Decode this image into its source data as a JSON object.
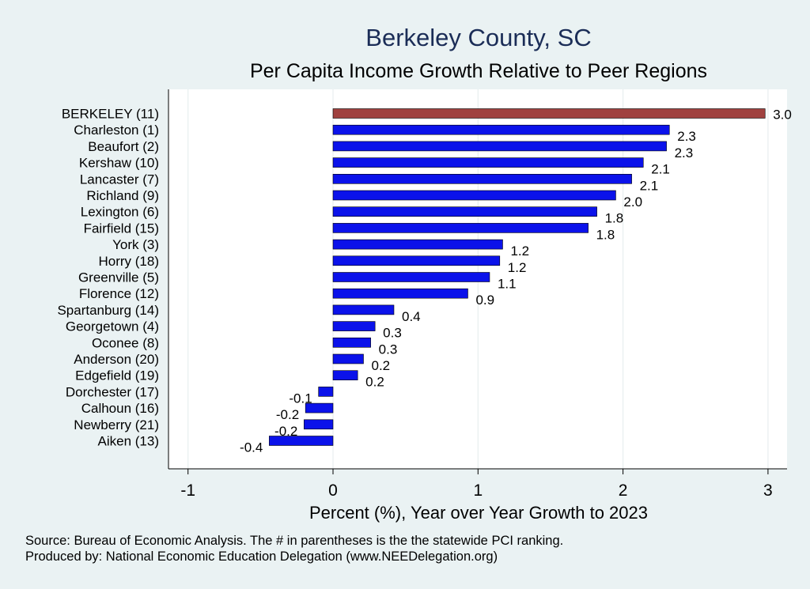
{
  "chart_data": {
    "type": "bar",
    "orientation": "horizontal",
    "title": "Berkeley County, SC",
    "subtitle": "Per Capita Income Growth Relative to Peer Regions",
    "xlabel": "Percent (%), Year over Year Growth to 2023",
    "ylabel": "",
    "xlim": [
      -1.15,
      3.15
    ],
    "xticks": [
      -1,
      0,
      1,
      2,
      3
    ],
    "grid": true,
    "highlight_color": "#a0413f",
    "bar_color": "#0b12ea",
    "categories": [
      "BERKELEY (11)",
      "Charleston  (1)",
      "Beaufort  (2)",
      "Kershaw (10)",
      "Lancaster  (7)",
      "Richland  (9)",
      "Lexington  (6)",
      "Fairfield (15)",
      "York  (3)",
      "Horry (18)",
      "Greenville  (5)",
      "Florence (12)",
      "Spartanburg (14)",
      "Georgetown  (4)",
      "Oconee  (8)",
      "Anderson (20)",
      "Edgefield (19)",
      "Dorchester (17)",
      "Calhoun (16)",
      "Newberry (21)",
      "Aiken (13)"
    ],
    "values": [
      2.98,
      2.32,
      2.3,
      2.14,
      2.06,
      1.95,
      1.82,
      1.76,
      1.17,
      1.15,
      1.08,
      0.93,
      0.42,
      0.29,
      0.26,
      0.21,
      0.17,
      -0.1,
      -0.19,
      -0.2,
      -0.44
    ],
    "value_labels": [
      "3.0",
      "2.3",
      "2.3",
      "2.1",
      "2.1",
      "2.0",
      "1.8",
      "1.8",
      "1.2",
      "1.2",
      "1.1",
      "0.9",
      "0.4",
      "0.3",
      "0.3",
      "0.2",
      "0.2",
      "-0.1",
      "-0.2",
      "-0.2",
      "-0.4"
    ],
    "highlight_index": 0
  },
  "footer": {
    "source": "Source: Bureau of Economic Analysis. The # in parentheses is the the statewide PCI ranking.",
    "producer": "Produced by: National Economic Education Delegation (www.NEEDelegation.org)"
  }
}
